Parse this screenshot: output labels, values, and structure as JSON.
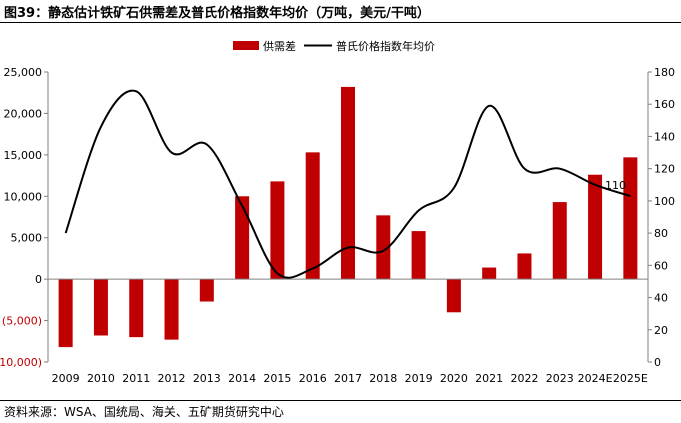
{
  "header": {
    "title": "图39：静态估计铁矿石供需差及普氏价格指数年均价（万吨，美元/干吨）"
  },
  "footer": {
    "source": "资料来源：WSA、国统局、海关、五矿期货研究中心"
  },
  "colors": {
    "bar": "#c00000",
    "line": "#000000",
    "negative_tick": "#c00000",
    "axis": "#808080"
  },
  "chart_data": {
    "type": "bar+line",
    "title": "",
    "categories": [
      "2009",
      "2010",
      "2011",
      "2012",
      "2013",
      "2014",
      "2015",
      "2016",
      "2017",
      "2018",
      "2019",
      "2020",
      "2021",
      "2022",
      "2023",
      "2024E",
      "2025E"
    ],
    "series": [
      {
        "name": "供需差",
        "type": "bar",
        "axis": "left",
        "values": [
          -8200,
          -6800,
          -7000,
          -7300,
          -2700,
          10000,
          11800,
          15300,
          23200,
          7700,
          5800,
          -4000,
          1400,
          3100,
          9300,
          12600,
          14700
        ]
      },
      {
        "name": "普氏价格指数年均价",
        "type": "line",
        "axis": "right",
        "values": [
          80,
          146,
          168,
          130,
          135,
          97,
          55,
          58,
          71,
          69,
          94,
          108,
          159,
          120,
          120,
          110,
          103
        ]
      }
    ],
    "left_axis": {
      "ylim": [
        -10000,
        25000
      ],
      "ticks": [
        25000,
        20000,
        15000,
        10000,
        5000,
        0,
        -5000,
        -10000
      ],
      "tick_labels": [
        "25,000",
        "20,000",
        "15,000",
        "10,000",
        "5,000",
        "0",
        "(5,000)",
        "(10,000)"
      ]
    },
    "right_axis": {
      "ylim": [
        0,
        180
      ],
      "ticks": [
        0,
        20,
        40,
        60,
        80,
        100,
        120,
        140,
        160,
        180
      ],
      "tick_labels": [
        "0",
        "20",
        "40",
        "60",
        "80",
        "100",
        "120",
        "140",
        "160",
        "180"
      ]
    },
    "annotations": [
      {
        "category": "2024E",
        "series": "普氏价格指数年均价",
        "text": "110"
      }
    ],
    "legend": {
      "position": "top-center",
      "entries": [
        "供需差",
        "普氏价格指数年均价"
      ]
    },
    "grid": false
  }
}
